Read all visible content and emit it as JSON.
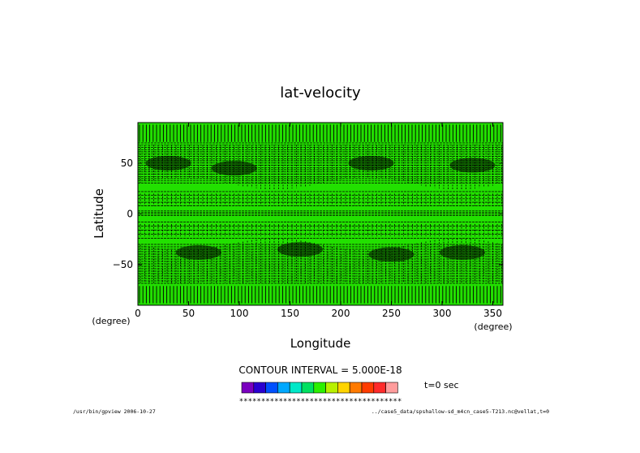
{
  "chart_data": {
    "type": "heatmap",
    "title": "lat-velocity",
    "xlabel": "Longitude",
    "ylabel": "Latitude",
    "x_unit": "(degree)",
    "y_unit": "(degree)",
    "xlim": [
      0,
      360
    ],
    "ylim": [
      -90,
      90
    ],
    "x_ticks": [
      0,
      50,
      100,
      150,
      200,
      250,
      300,
      350
    ],
    "y_ticks": [
      50,
      0,
      -50
    ],
    "grid": false,
    "contour_interval_text": "CONTOUR INTERVAL = 5.000E-18",
    "time_text": "t=0 sec",
    "colorbar": {
      "colors": [
        "#7a00bf",
        "#2a00d0",
        "#0050ff",
        "#00a8ff",
        "#00e8c8",
        "#00e060",
        "#2cf000",
        "#b8f000",
        "#ffd400",
        "#ff7a00",
        "#ff3c00",
        "#ff2a2a",
        "#ff9c9c"
      ],
      "labels_text": "*************************************"
    },
    "field_fill_color": "#22e000",
    "contour_color": "#000000"
  },
  "footer": {
    "left": "/usr/bin/gpview  2006-10-27",
    "right": "../case5_data/spshallow-sd_m4cn_case5-T213.nc@vellat,t=0"
  }
}
